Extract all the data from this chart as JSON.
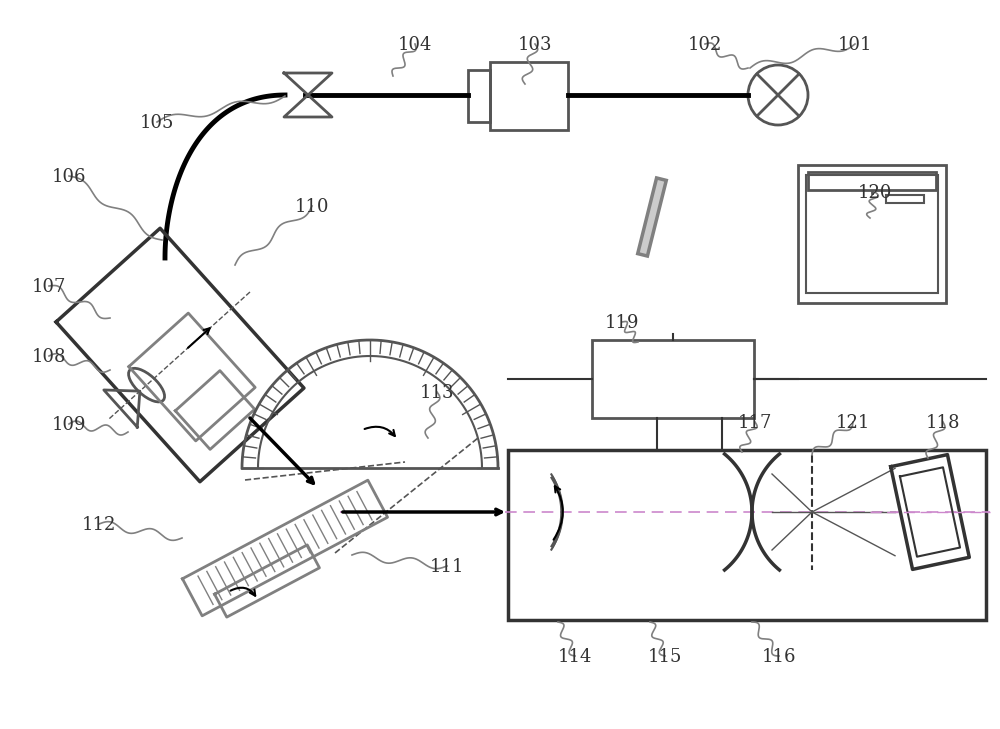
{
  "bg_color": "#ffffff",
  "line_color": "#555555",
  "dark_color": "#333333",
  "label_color": "#333333",
  "pink_line": "#cc88cc"
}
